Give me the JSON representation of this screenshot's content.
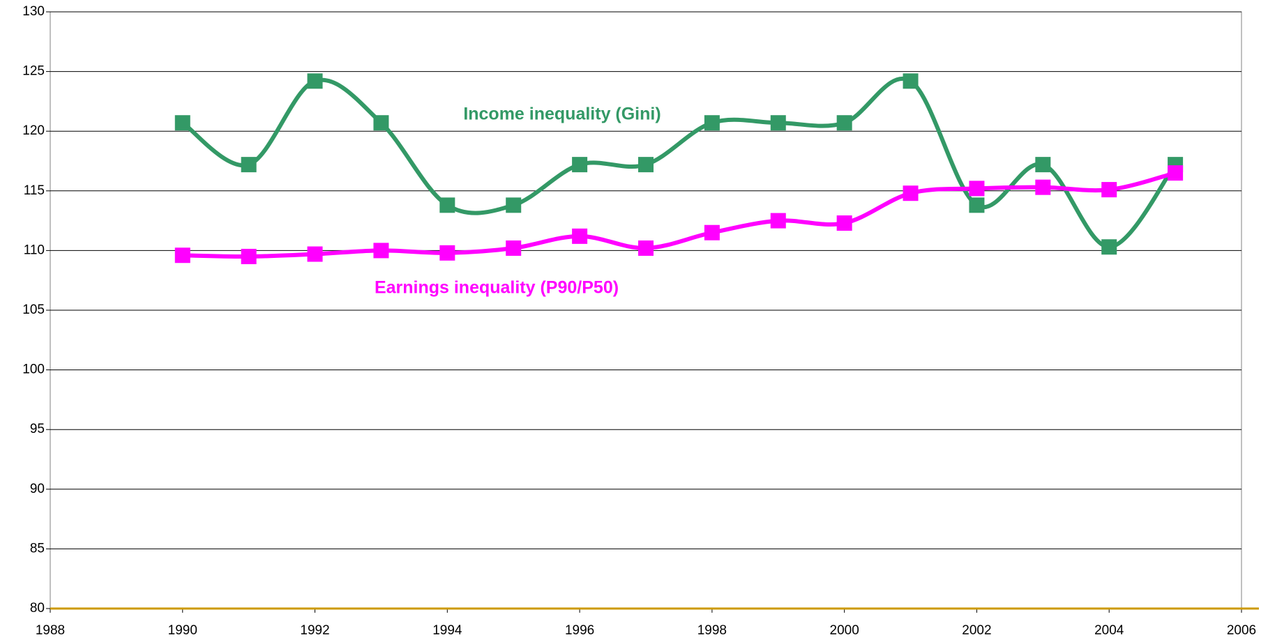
{
  "chart_data": {
    "type": "line",
    "x": [
      1990,
      1991,
      1992,
      1993,
      1994,
      1995,
      1996,
      1997,
      1998,
      1999,
      2000,
      2001,
      2002,
      2003,
      2004,
      2005
    ],
    "series": [
      {
        "name": "Income inequality (Gini)",
        "color": "#339966",
        "values": [
          120.7,
          117.2,
          124.2,
          120.7,
          113.8,
          113.8,
          117.2,
          117.2,
          120.7,
          120.7,
          120.7,
          124.2,
          113.8,
          117.2,
          110.3,
          117.2
        ]
      },
      {
        "name": "Earnings inequality (P90/P50)",
        "color": "#ff00ff",
        "values": [
          109.6,
          109.5,
          109.7,
          110.0,
          109.8,
          110.2,
          111.2,
          110.2,
          111.5,
          112.5,
          112.3,
          114.8,
          115.2,
          115.3,
          115.1,
          116.5
        ]
      }
    ],
    "xlim": [
      1988,
      2006
    ],
    "xticks": [
      1988,
      1990,
      1992,
      1994,
      1996,
      1998,
      2000,
      2002,
      2004,
      2006
    ],
    "ylim": [
      80,
      130
    ],
    "yticks": [
      80,
      85,
      90,
      95,
      100,
      105,
      110,
      115,
      120,
      125,
      130
    ],
    "grid": true,
    "smooth": true,
    "x_axis_color": "#cc9900"
  }
}
